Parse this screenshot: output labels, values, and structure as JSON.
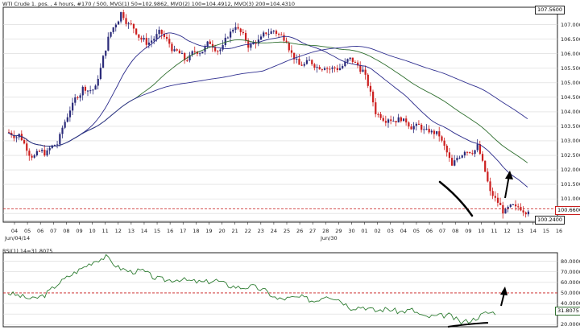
{
  "main_panel": {
    "title": "WTI Crude 1. pos. , 4 hours, #170 / 500, MVG(1) 50=102.9862, MVO(2) 100=104.4912, MVO(3) 200=104.4310",
    "y_ticks": [
      "107.0000",
      "106.5000",
      "106.0000",
      "105.5000",
      "105.0000",
      "104.5000",
      "104.0000",
      "103.5000",
      "103.0000",
      "102.5000",
      "102.0000",
      "101.5000",
      "101.0000",
      "100.5000"
    ],
    "top_box": "107.5600",
    "price_box": "100.6600",
    "low_box": "100.2400",
    "x_ticks": [
      "04",
      "05",
      "06",
      "07",
      "08",
      "09",
      "10",
      "11",
      "12",
      "13",
      "14",
      "15",
      "16",
      "17",
      "18",
      "19",
      "20",
      "21",
      "22",
      "23",
      "24",
      "25",
      "26",
      "27",
      "28",
      "29",
      "30",
      "01",
      "02",
      "03",
      "04",
      "05",
      "06",
      "07",
      "08",
      "09",
      "10",
      "11",
      "12",
      "13",
      "14",
      "15",
      "16"
    ],
    "date_start": "Jun/04/14",
    "date_mid": "Jun/30",
    "colors": {
      "up": "#2b2b7a",
      "down": "#cc1f1f",
      "ma50": "#2a2a8a",
      "ma100": "#2e6e2e",
      "ma200": "#303090",
      "annotation": "#000000",
      "dashed": "#c81e1e"
    }
  },
  "rsi_panel": {
    "title": "RSI(1) 14=31.8075",
    "y_ticks": [
      "80.0000",
      "70.0000",
      "60.0000",
      "50.0000",
      "40.0000",
      "30.0000",
      "20.0000"
    ],
    "value_box": "31.8075",
    "level": 50
  },
  "chart_data": [
    {
      "type": "candlestick",
      "title": "WTI Crude 1. pos. , 4 hours",
      "ylim": [
        100.2,
        107.6
      ],
      "x": [
        "04",
        "05",
        "06",
        "07",
        "08",
        "09",
        "10",
        "11",
        "12",
        "13",
        "14",
        "15",
        "16",
        "17",
        "18",
        "19",
        "20",
        "21",
        "22",
        "23",
        "24",
        "25",
        "26",
        "27",
        "28",
        "29",
        "30",
        "01",
        "02",
        "03",
        "04",
        "05",
        "06",
        "07",
        "08",
        "09",
        "10",
        "11",
        "12",
        "13",
        "14"
      ],
      "close": [
        103.2,
        102.5,
        102.6,
        102.9,
        104.1,
        104.8,
        104.8,
        106.5,
        107.4,
        106.9,
        106.4,
        106.7,
        106.2,
        105.8,
        106.1,
        106.4,
        106.2,
        107.0,
        106.3,
        106.5,
        106.8,
        106.5,
        105.6,
        105.7,
        105.6,
        105.5,
        105.8,
        105.4,
        104.0,
        103.8,
        103.8,
        103.5,
        103.3,
        103.2,
        102.1,
        102.7,
        102.8,
        101.2,
        100.6,
        100.66,
        100.66
      ],
      "series": [
        {
          "name": "MVG(1) 50",
          "value": 102.9862
        },
        {
          "name": "MVO(2) 100",
          "value": 104.4912
        },
        {
          "name": "MVO(3) 200",
          "value": 104.431
        }
      ],
      "current_price": 100.66,
      "low_marker": 100.24
    },
    {
      "type": "line",
      "title": "RSI(1) 14",
      "ylim": [
        20,
        85
      ],
      "values": [
        50,
        47,
        44,
        48,
        58,
        66,
        73,
        80,
        84,
        74,
        70,
        71,
        64,
        62,
        63,
        61,
        60,
        62,
        57,
        55,
        56,
        52,
        44,
        45,
        46,
        42,
        48,
        44,
        36,
        37,
        33,
        35,
        32,
        34,
        27,
        28,
        29,
        22,
        25,
        31,
        31.8
      ],
      "reference_line": 50,
      "current": 31.8075
    }
  ]
}
